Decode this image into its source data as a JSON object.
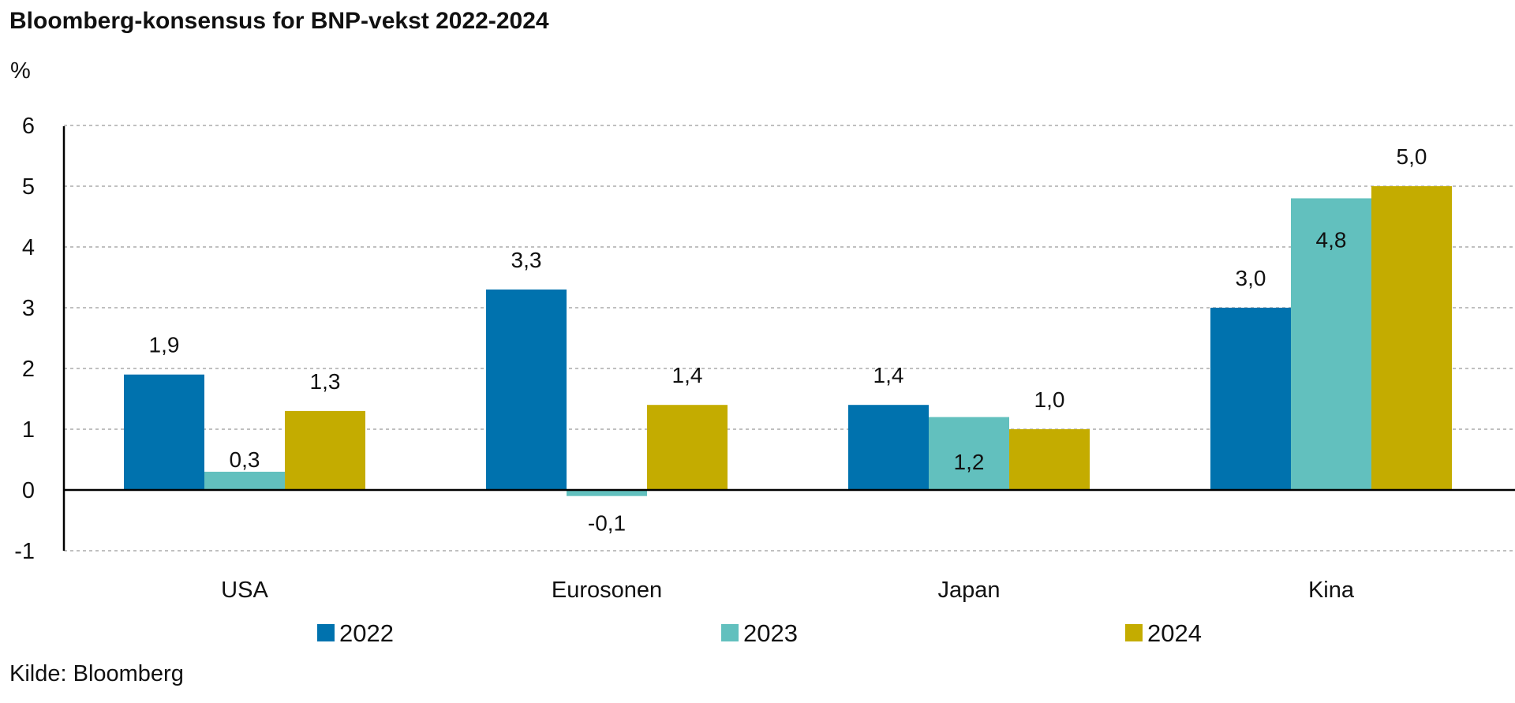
{
  "chart_data": {
    "type": "bar",
    "title": "Bloomberg-konsensus for BNP-vekst 2022-2024",
    "unit_label": "%",
    "categories": [
      "USA",
      "Eurosonen",
      "Japan",
      "Kina"
    ],
    "series": [
      {
        "name": "2022",
        "color": "#0072AE",
        "values": [
          1.9,
          3.3,
          1.4,
          3.0
        ],
        "labels": [
          "1,9",
          "3,3",
          "1,4",
          "3,0"
        ]
      },
      {
        "name": "2023",
        "color": "#62C0BE",
        "values": [
          0.3,
          -0.1,
          1.2,
          4.8
        ],
        "labels": [
          "0,3",
          "-0,1",
          "1,2",
          "4,8"
        ]
      },
      {
        "name": "2024",
        "color": "#C4AC00",
        "values": [
          1.3,
          1.4,
          1.0,
          5.0
        ],
        "labels": [
          "1,3",
          "1,4",
          "1,0",
          "5,0"
        ]
      }
    ],
    "yticks": [
      6,
      5,
      4,
      3,
      2,
      1,
      0,
      -1
    ],
    "ylim": [
      -1,
      6
    ],
    "grid": true,
    "legend_position": "bottom",
    "source": "Kilde: Bloomberg"
  }
}
